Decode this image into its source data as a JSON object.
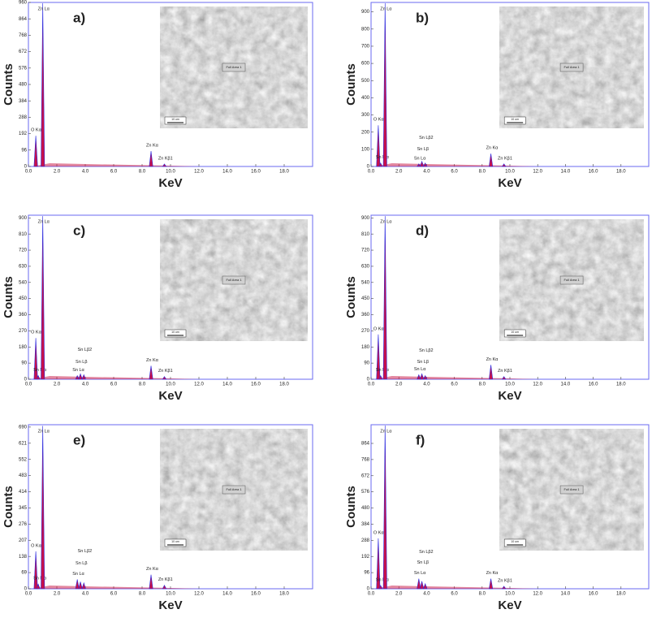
{
  "chart_data": [
    {
      "type": "spectrum",
      "label": "a)",
      "xlabel": "KeV",
      "ylabel": "Counts",
      "inset_label": "Full Area 1",
      "scale_bar": "10 um",
      "xlim": [
        0,
        20
      ],
      "xticks": [
        {
          "value": 0,
          "label": "0.0"
        },
        {
          "value": 2,
          "label": "2.0"
        },
        {
          "value": 4,
          "label": "4.0"
        },
        {
          "value": 6,
          "label": "6.0"
        },
        {
          "value": 8,
          "label": "8.0"
        },
        {
          "value": 10,
          "label": "10.0"
        },
        {
          "value": 12,
          "label": "12.0"
        },
        {
          "value": 14,
          "label": "14.0"
        },
        {
          "value": 16,
          "label": "16.0"
        },
        {
          "value": 18,
          "label": "18.0"
        }
      ],
      "ylim": [
        0,
        960
      ],
      "yticks": [
        0,
        96,
        192,
        288,
        384,
        480,
        576,
        672,
        768,
        864,
        960
      ],
      "peaks": [
        {
          "label": "O Kα1",
          "x": 0.52,
          "value": 180
        },
        {
          "label": "Zn Lα",
          "x": 1.01,
          "value": 955
        },
        {
          "label": "Zn Kα",
          "x": 8.63,
          "value": 90
        },
        {
          "label": "Zn Kβ1",
          "x": 9.57,
          "value": 15
        }
      ]
    },
    {
      "type": "spectrum",
      "label": "b)",
      "xlabel": "KeV",
      "ylabel": "Counts",
      "inset_label": "Full Area 1",
      "scale_bar": "10 um",
      "xlim": [
        0,
        20
      ],
      "xticks": [
        {
          "value": 0,
          "label": "0.0"
        },
        {
          "value": 2,
          "label": "2.0"
        },
        {
          "value": 4,
          "label": "4.0"
        },
        {
          "value": 6,
          "label": "6.0"
        },
        {
          "value": 8,
          "label": "8.0"
        },
        {
          "value": 10,
          "label": "10.0"
        },
        {
          "value": 12,
          "label": "12.0"
        },
        {
          "value": 14,
          "label": "14.0"
        },
        {
          "value": 16,
          "label": "16.0"
        },
        {
          "value": 18,
          "label": "18.0"
        }
      ],
      "ylim": [
        0,
        955
      ],
      "yticks": [
        0,
        100,
        200,
        300,
        400,
        500,
        600,
        700,
        800,
        900
      ],
      "peaks": [
        {
          "label": "O Kα1",
          "x": 0.52,
          "value": 240
        },
        {
          "label": "Sn Mα",
          "x": 0.69,
          "value": 20
        },
        {
          "label": "Zn Lα",
          "x": 1.01,
          "value": 950
        },
        {
          "label": "Sn Lα",
          "x": 3.44,
          "value": 15
        },
        {
          "label": "Sn Lβ",
          "x": 3.66,
          "value": 30
        },
        {
          "label": "Sn Lβ2",
          "x": 3.9,
          "value": 20
        },
        {
          "label": "Zn Kα",
          "x": 8.63,
          "value": 75
        },
        {
          "label": "Zn Kβ1",
          "x": 9.57,
          "value": 15
        }
      ]
    },
    {
      "type": "spectrum",
      "label": "c)",
      "xlabel": "KeV",
      "ylabel": "Counts",
      "inset_label": "Full Area 1",
      "scale_bar": "10 um",
      "xlim": [
        0,
        20
      ],
      "xticks": [
        {
          "value": 0,
          "label": "0.0"
        },
        {
          "value": 2,
          "label": "2.0"
        },
        {
          "value": 4,
          "label": "4.0"
        },
        {
          "value": 6,
          "label": "6.0"
        },
        {
          "value": 8,
          "label": "8.0"
        },
        {
          "value": 10,
          "label": "10.0"
        },
        {
          "value": 12,
          "label": "12.0"
        },
        {
          "value": 14,
          "label": "14.0"
        },
        {
          "value": 16,
          "label": "16.0"
        },
        {
          "value": 18,
          "label": "18.0"
        }
      ],
      "ylim": [
        0,
        915
      ],
      "yticks": [
        0,
        90,
        180,
        270,
        360,
        450,
        540,
        630,
        720,
        810,
        900
      ],
      "peaks": [
        {
          "label": "O Kα1",
          "x": 0.52,
          "value": 230
        },
        {
          "label": "Sn Mα",
          "x": 0.69,
          "value": 20
        },
        {
          "label": "Zn Lα",
          "x": 1.01,
          "value": 910
        },
        {
          "label": "Sn Lα",
          "x": 3.44,
          "value": 20
        },
        {
          "label": "Sn Lβ",
          "x": 3.66,
          "value": 30
        },
        {
          "label": "Sn Lβ2",
          "x": 3.9,
          "value": 25
        },
        {
          "label": "Zn Kα",
          "x": 8.63,
          "value": 75
        },
        {
          "label": "Zn Kβ1",
          "x": 9.57,
          "value": 15
        }
      ]
    },
    {
      "type": "spectrum",
      "label": "d)",
      "xlabel": "KeV",
      "ylabel": "Counts",
      "inset_label": "Full Area 1",
      "scale_bar": "10 um",
      "xlim": [
        0,
        20
      ],
      "xticks": [
        {
          "value": 0,
          "label": "0.0"
        },
        {
          "value": 2,
          "label": "2.0"
        },
        {
          "value": 4,
          "label": "4.0"
        },
        {
          "value": 6,
          "label": "6.0"
        },
        {
          "value": 8,
          "label": "8.0"
        },
        {
          "value": 10,
          "label": "10.0"
        },
        {
          "value": 12,
          "label": "12.0"
        },
        {
          "value": 14,
          "label": "14.0"
        },
        {
          "value": 16,
          "label": "16.0"
        },
        {
          "value": 18,
          "label": "18.0"
        }
      ],
      "ylim": [
        0,
        915
      ],
      "yticks": [
        0,
        90,
        180,
        270,
        360,
        450,
        540,
        630,
        720,
        810,
        900
      ],
      "peaks": [
        {
          "label": "O Kα1",
          "x": 0.52,
          "value": 250
        },
        {
          "label": "Sn Mα",
          "x": 0.69,
          "value": 20
        },
        {
          "label": "Zn Lα",
          "x": 1.01,
          "value": 910
        },
        {
          "label": "Sn Lα",
          "x": 3.44,
          "value": 25
        },
        {
          "label": "Sn Lβ",
          "x": 3.66,
          "value": 30
        },
        {
          "label": "Sn Lβ2",
          "x": 3.9,
          "value": 20
        },
        {
          "label": "Zn Kα",
          "x": 8.63,
          "value": 80
        },
        {
          "label": "Zn Kβ1",
          "x": 9.57,
          "value": 15
        }
      ]
    },
    {
      "type": "spectrum",
      "label": "e)",
      "xlabel": "KeV",
      "ylabel": "Counts",
      "inset_label": "Full Area 1",
      "scale_bar": "10 um",
      "xlim": [
        0,
        20
      ],
      "xticks": [
        {
          "value": 0,
          "label": "0.0"
        },
        {
          "value": 2,
          "label": "2.0"
        },
        {
          "value": 4,
          "label": "4.0"
        },
        {
          "value": 6,
          "label": "6.0"
        },
        {
          "value": 8,
          "label": "8.0"
        },
        {
          "value": 10,
          "label": "10.0"
        },
        {
          "value": 12,
          "label": "12.0"
        },
        {
          "value": 14,
          "label": "14.0"
        },
        {
          "value": 16,
          "label": "16.0"
        },
        {
          "value": 18,
          "label": "18.0"
        }
      ],
      "ylim": [
        0,
        700
      ],
      "yticks": [
        0,
        69,
        138,
        207,
        276,
        345,
        414,
        483,
        552,
        621,
        690
      ],
      "peaks": [
        {
          "label": "O Kα1",
          "x": 0.52,
          "value": 160
        },
        {
          "label": "Sn Mα",
          "x": 0.69,
          "value": 20
        },
        {
          "label": "Zn Lα",
          "x": 1.01,
          "value": 695
        },
        {
          "label": "Sn Lα",
          "x": 3.44,
          "value": 40
        },
        {
          "label": "Sn Lβ",
          "x": 3.66,
          "value": 30
        },
        {
          "label": "Sn Lβ2",
          "x": 3.9,
          "value": 25
        },
        {
          "label": "Zn Kα",
          "x": 8.63,
          "value": 60
        },
        {
          "label": "Zn Kβ1",
          "x": 9.57,
          "value": 15
        }
      ]
    },
    {
      "type": "spectrum",
      "label": "f)",
      "xlabel": "KeV",
      "ylabel": "Counts",
      "inset_label": "Full Area 1",
      "scale_bar": "10 um",
      "xlim": [
        0,
        20
      ],
      "xticks": [
        {
          "value": 0,
          "label": "0.0"
        },
        {
          "value": 2,
          "label": "2.0"
        },
        {
          "value": 4,
          "label": "4.0"
        },
        {
          "value": 6,
          "label": "6.0"
        },
        {
          "value": 8,
          "label": "8.0"
        },
        {
          "value": 10,
          "label": "10.0"
        },
        {
          "value": 12,
          "label": "12.0"
        },
        {
          "value": 14,
          "label": "14.0"
        },
        {
          "value": 16,
          "label": "16.0"
        },
        {
          "value": 18,
          "label": "18.0"
        }
      ],
      "ylim": [
        0,
        975
      ],
      "yticks": [
        0,
        96,
        192,
        288,
        384,
        480,
        576,
        672,
        768,
        864
      ],
      "peaks": [
        {
          "label": "O Kα1",
          "x": 0.52,
          "value": 300
        },
        {
          "label": "Sn Mα",
          "x": 0.69,
          "value": 20
        },
        {
          "label": "Zn Lα",
          "x": 1.01,
          "value": 970
        },
        {
          "label": "Sn Lα",
          "x": 3.44,
          "value": 60
        },
        {
          "label": "Sn Lβ",
          "x": 3.66,
          "value": 45
        },
        {
          "label": "Sn Lβ2",
          "x": 3.9,
          "value": 30
        },
        {
          "label": "Zn Kα",
          "x": 8.63,
          "value": 60
        },
        {
          "label": "Zn Kβ1",
          "x": 9.57,
          "value": 15
        }
      ]
    }
  ]
}
